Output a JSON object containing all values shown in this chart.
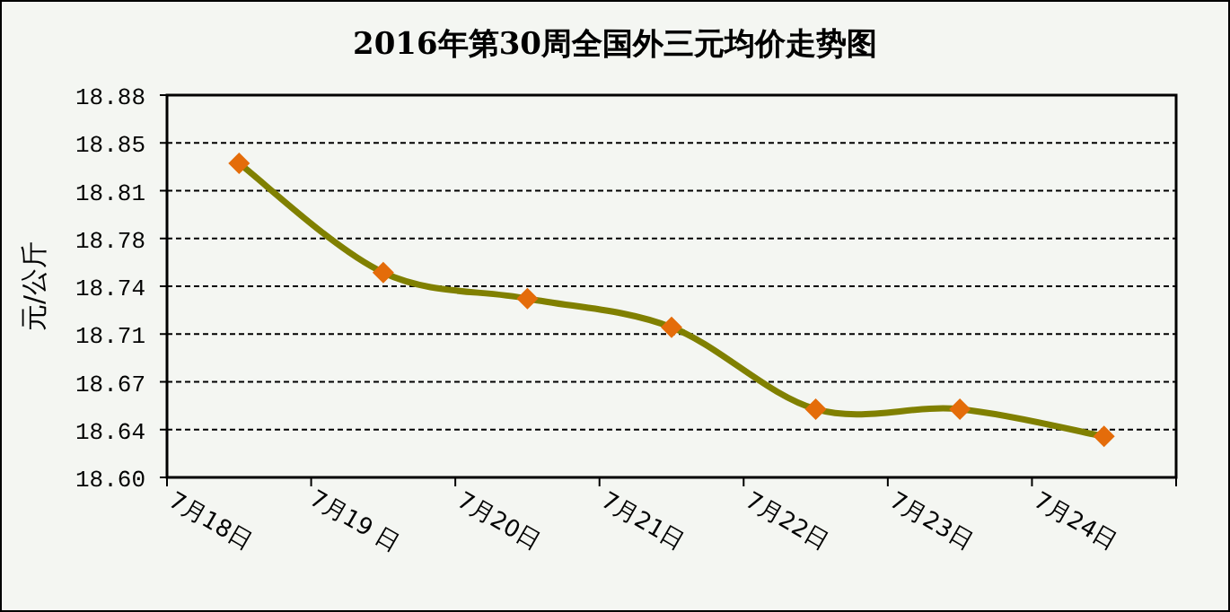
{
  "chart_data": {
    "type": "line",
    "title": "2016年第30周全国外三元均价走势图",
    "ylabel": "元/公斤",
    "categories": [
      "7月18日",
      "7月19 日",
      "7月20日",
      "7月21日",
      "7月22日",
      "7月23日",
      "7月24日"
    ],
    "series": [
      {
        "color": "#808000",
        "values": [
          18.83,
          18.75,
          18.731,
          18.71,
          18.65,
          18.65,
          18.63
        ]
      }
    ],
    "ylim": [
      18.6,
      18.88
    ],
    "yticks": [
      {
        "value": 18.6,
        "label": "18.60"
      },
      {
        "value": 18.635,
        "label": "18.64"
      },
      {
        "value": 18.67,
        "label": "18.67"
      },
      {
        "value": 18.705,
        "label": "18.71"
      },
      {
        "value": 18.74,
        "label": "18.74"
      },
      {
        "value": 18.775,
        "label": "18.78"
      },
      {
        "value": 18.81,
        "label": "18.81"
      },
      {
        "value": 18.845,
        "label": "18.85"
      },
      {
        "value": 18.88,
        "label": "18.88"
      }
    ],
    "grid": "y",
    "marker": "diamond",
    "line_style": "solid"
  }
}
